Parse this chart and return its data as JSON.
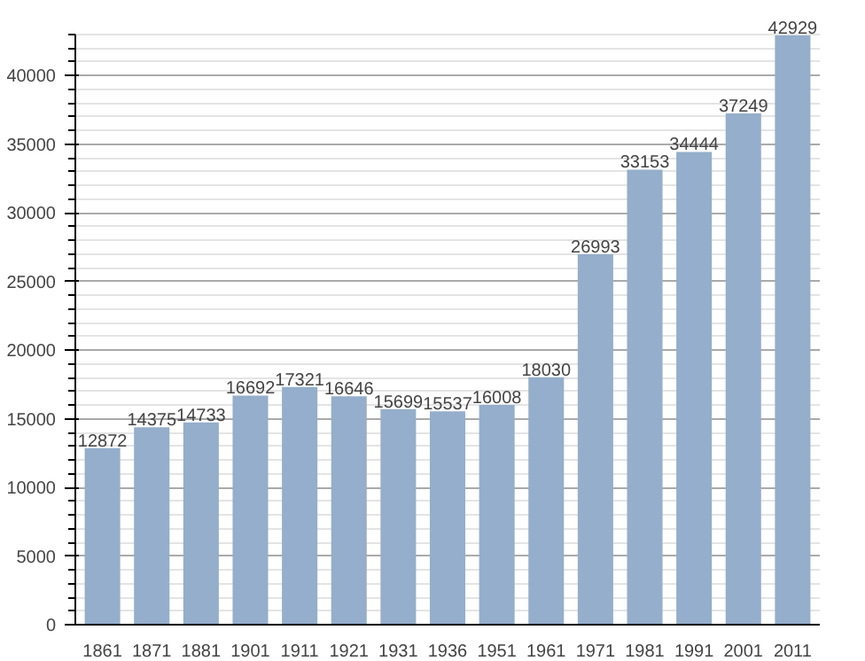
{
  "chart_data": {
    "type": "bar",
    "categories": [
      "1861",
      "1871",
      "1881",
      "1901",
      "1911",
      "1921",
      "1931",
      "1936",
      "1951",
      "1961",
      "1971",
      "1981",
      "1991",
      "2001",
      "2011"
    ],
    "values": [
      12872,
      14375,
      14733,
      16692,
      17321,
      16646,
      15699,
      15537,
      16008,
      18030,
      26993,
      33153,
      34444,
      37249,
      42929
    ],
    "color": "#94aecb",
    "data_labels": true,
    "grid": "y",
    "ylim": [
      0,
      43000
    ],
    "yticks": [
      0,
      5000,
      10000,
      15000,
      20000,
      25000,
      30000,
      35000,
      40000
    ]
  }
}
